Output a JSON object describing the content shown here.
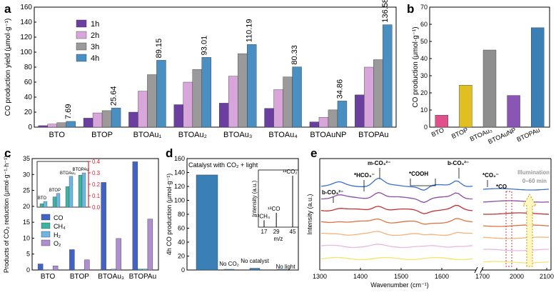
{
  "chart_data": [
    {
      "panel": "a",
      "type": "bar",
      "ylabel": "CO production yield (μmol·g⁻¹)",
      "ylim": [
        0,
        160
      ],
      "yticks": [
        0,
        20,
        40,
        60,
        80,
        100,
        120,
        140,
        160
      ],
      "categories": [
        "BTO",
        "BTOP",
        "BTOAu₁",
        "BTOAu₂",
        "BTOAu₃",
        "BTOAu₄",
        "BTOAuNP",
        "BTOPAu"
      ],
      "series": [
        {
          "name": "1h",
          "color": "#6b3fa0",
          "values": [
            2,
            12,
            20,
            30,
            32,
            25,
            7,
            43
          ]
        },
        {
          "name": "2h",
          "color": "#d9a6dc",
          "values": [
            4,
            19,
            48,
            60,
            68,
            50,
            13,
            80
          ]
        },
        {
          "name": "3h",
          "color": "#9a9a9a",
          "values": [
            6,
            22,
            70,
            77,
            98,
            67,
            23,
            90
          ]
        },
        {
          "name": "4h",
          "color": "#4a8fc2",
          "values": [
            7.69,
            25.64,
            89.15,
            93.01,
            110.19,
            80.33,
            34.86,
            136.58
          ]
        }
      ],
      "value_labels": [
        "7.69",
        "25.64",
        "89.15",
        "93.01",
        "110.19",
        "80.33",
        "34.86",
        "136.58"
      ]
    },
    {
      "panel": "b",
      "type": "bar",
      "ylabel": "CO production (μmol·g⁻¹)",
      "ylim": [
        0,
        70
      ],
      "yticks": [
        0,
        10,
        20,
        30,
        40,
        50,
        60,
        70
      ],
      "categories": [
        "BTO",
        "BTOP",
        "BTOAu₃",
        "BTOAuNP",
        "BTOPAu"
      ],
      "colors": [
        "#e0508a",
        "#e0c020",
        "#8e8e8e",
        "#8a55b4",
        "#3a7fb5"
      ],
      "values": [
        7,
        24.5,
        45,
        18.5,
        58
      ]
    },
    {
      "panel": "c",
      "type": "bar",
      "ylabel": "Products of CO₂ reduction (μmol·g⁻¹·h⁻¹)",
      "ylim": [
        0,
        35
      ],
      "yticks": [
        0,
        5,
        10,
        15,
        20,
        25,
        30,
        35
      ],
      "categories": [
        "BTO",
        "BTOP",
        "BTOAu₃",
        "BTOPAu"
      ],
      "series": [
        {
          "name": "CO",
          "color": "#4363c4",
          "values": [
            1.9,
            6.4,
            27.5,
            34
          ]
        },
        {
          "name": "CH₄",
          "color": "#3fb3a0",
          "values": [
            0.03,
            0.09,
            0.18,
            0.28
          ]
        },
        {
          "name": "H₂",
          "color": "#6fb6e2",
          "values": [
            0.05,
            0.12,
            0.27,
            0.3
          ]
        },
        {
          "name": "O₂",
          "color": "#b08fd0",
          "values": [
            1.3,
            3.2,
            9.9,
            16
          ]
        }
      ],
      "inset": {
        "ylim": [
          0,
          0.4
        ],
        "yticks": [
          0.0,
          0.1,
          0.2,
          0.3,
          0.4
        ],
        "labels": [
          "BTO",
          "BTOP",
          "BTOAu₃",
          "BTOPAu"
        ]
      }
    },
    {
      "panel": "d",
      "type": "bar",
      "ylabel": "4h CO production (μmol·g⁻¹)",
      "ylim": [
        0,
        160
      ],
      "yticks": [
        0,
        20,
        40,
        60,
        80,
        100,
        120,
        140,
        160
      ],
      "categories": [
        "Catalyst with CO₂ + light",
        "No CO₂",
        "No catalyst",
        "No light"
      ],
      "values": [
        136.5,
        0.5,
        2.5,
        0.5
      ],
      "inset": {
        "xlabel": "m/z",
        "ylabel": "Intensity (a.u.)",
        "xticks": [
          "17",
          "29",
          "45"
        ],
        "peaks": [
          {
            "label": "¹³CH₄",
            "mz": 17,
            "height": 0.12
          },
          {
            "label": "¹³CO",
            "mz": 29,
            "height": 0.25
          },
          {
            "label": "¹³CO₂",
            "mz": 45,
            "height": 0.9
          }
        ]
      }
    },
    {
      "panel": "e",
      "type": "line",
      "xlabel": "Wavenumber (cm⁻¹)",
      "ylabel": "Intensity (a.u.)",
      "xticks": [
        "1300",
        "1400",
        "1500",
        "1600",
        "1700",
        "2000",
        "2100"
      ],
      "annotations": [
        "b-CO₃²⁻",
        "*HCO₃⁻",
        "m-CO₃²⁻",
        "*COOH",
        "b-CO₃²⁻",
        "*CO₂⁻",
        "*CO"
      ],
      "illumination_label": "Illumination",
      "illumination_range": "0–60 min",
      "series_colors": [
        "#f5e46a",
        "#e8b8e0",
        "#f4b27a",
        "#e07040",
        "#c03030",
        "#8a4aa8",
        "#3a6fd0"
      ]
    }
  ],
  "panel_letters": [
    "a",
    "b",
    "c",
    "d",
    "e"
  ]
}
